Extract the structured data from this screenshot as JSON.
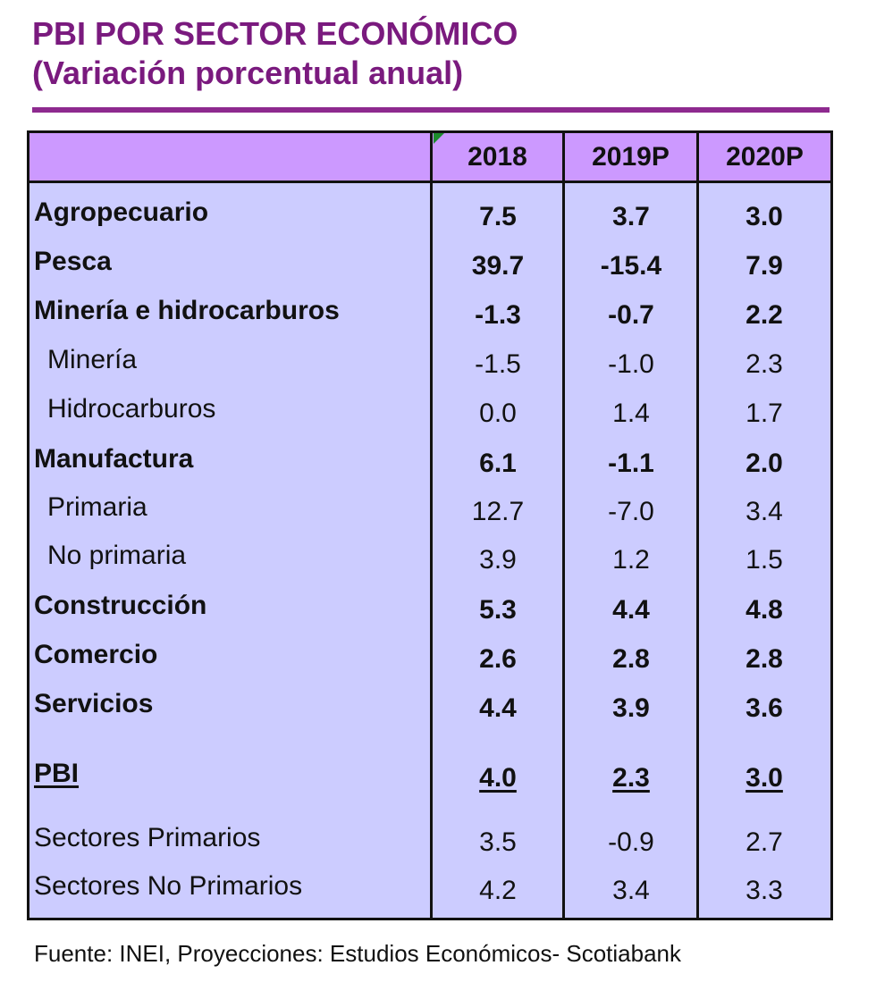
{
  "chart_data": {
    "type": "table",
    "title": "PBI POR SECTOR ECONÓMICO",
    "subtitle": "(Variación porcentual anual)",
    "columns": [
      "2018",
      "2019P",
      "2020P"
    ],
    "rows": [
      {
        "label": "Agropecuario",
        "values": [
          "7.5",
          "3.7",
          "3.0"
        ],
        "style": "bold"
      },
      {
        "label": "Pesca",
        "values": [
          "39.7",
          "-15.4",
          "7.9"
        ],
        "style": "bold"
      },
      {
        "label": "Minería e hidrocarburos",
        "values": [
          "-1.3",
          "-0.7",
          "2.2"
        ],
        "style": "bold"
      },
      {
        "label": "Minería",
        "values": [
          "-1.5",
          "-1.0",
          "2.3"
        ],
        "style": "sub"
      },
      {
        "label": "Hidrocarburos",
        "values": [
          "0.0",
          "1.4",
          "1.7"
        ],
        "style": "sub"
      },
      {
        "label": "Manufactura",
        "values": [
          "6.1",
          "-1.1",
          "2.0"
        ],
        "style": "bold"
      },
      {
        "label": "Primaria",
        "values": [
          "12.7",
          "-7.0",
          "3.4"
        ],
        "style": "sub"
      },
      {
        "label": "No primaria",
        "values": [
          "3.9",
          "1.2",
          "1.5"
        ],
        "style": "sub"
      },
      {
        "label": "Construcción",
        "values": [
          "5.3",
          "4.4",
          "4.8"
        ],
        "style": "bold"
      },
      {
        "label": "Comercio",
        "values": [
          "2.6",
          "2.8",
          "2.8"
        ],
        "style": "bold"
      },
      {
        "label": "Servicios",
        "values": [
          "4.4",
          "3.9",
          "3.6"
        ],
        "style": "bold"
      },
      {
        "label": "PBI",
        "values": [
          "4.0",
          "2.3",
          "3.0"
        ],
        "style": "total"
      },
      {
        "label": "Sectores Primarios",
        "values": [
          "3.5",
          "-0.9",
          "2.7"
        ],
        "style": "plain"
      },
      {
        "label": "Sectores No Primarios",
        "values": [
          "4.2",
          "3.4",
          "3.3"
        ],
        "style": "plain"
      }
    ],
    "source": "Fuente: INEI,  Proyecciones: Estudios Económicos- Scotiabank"
  },
  "colors": {
    "title": "#7a1a7e",
    "rule": "#8e2a8f",
    "header_bg": "#cc99ff",
    "body_bg": "#ccccff"
  }
}
